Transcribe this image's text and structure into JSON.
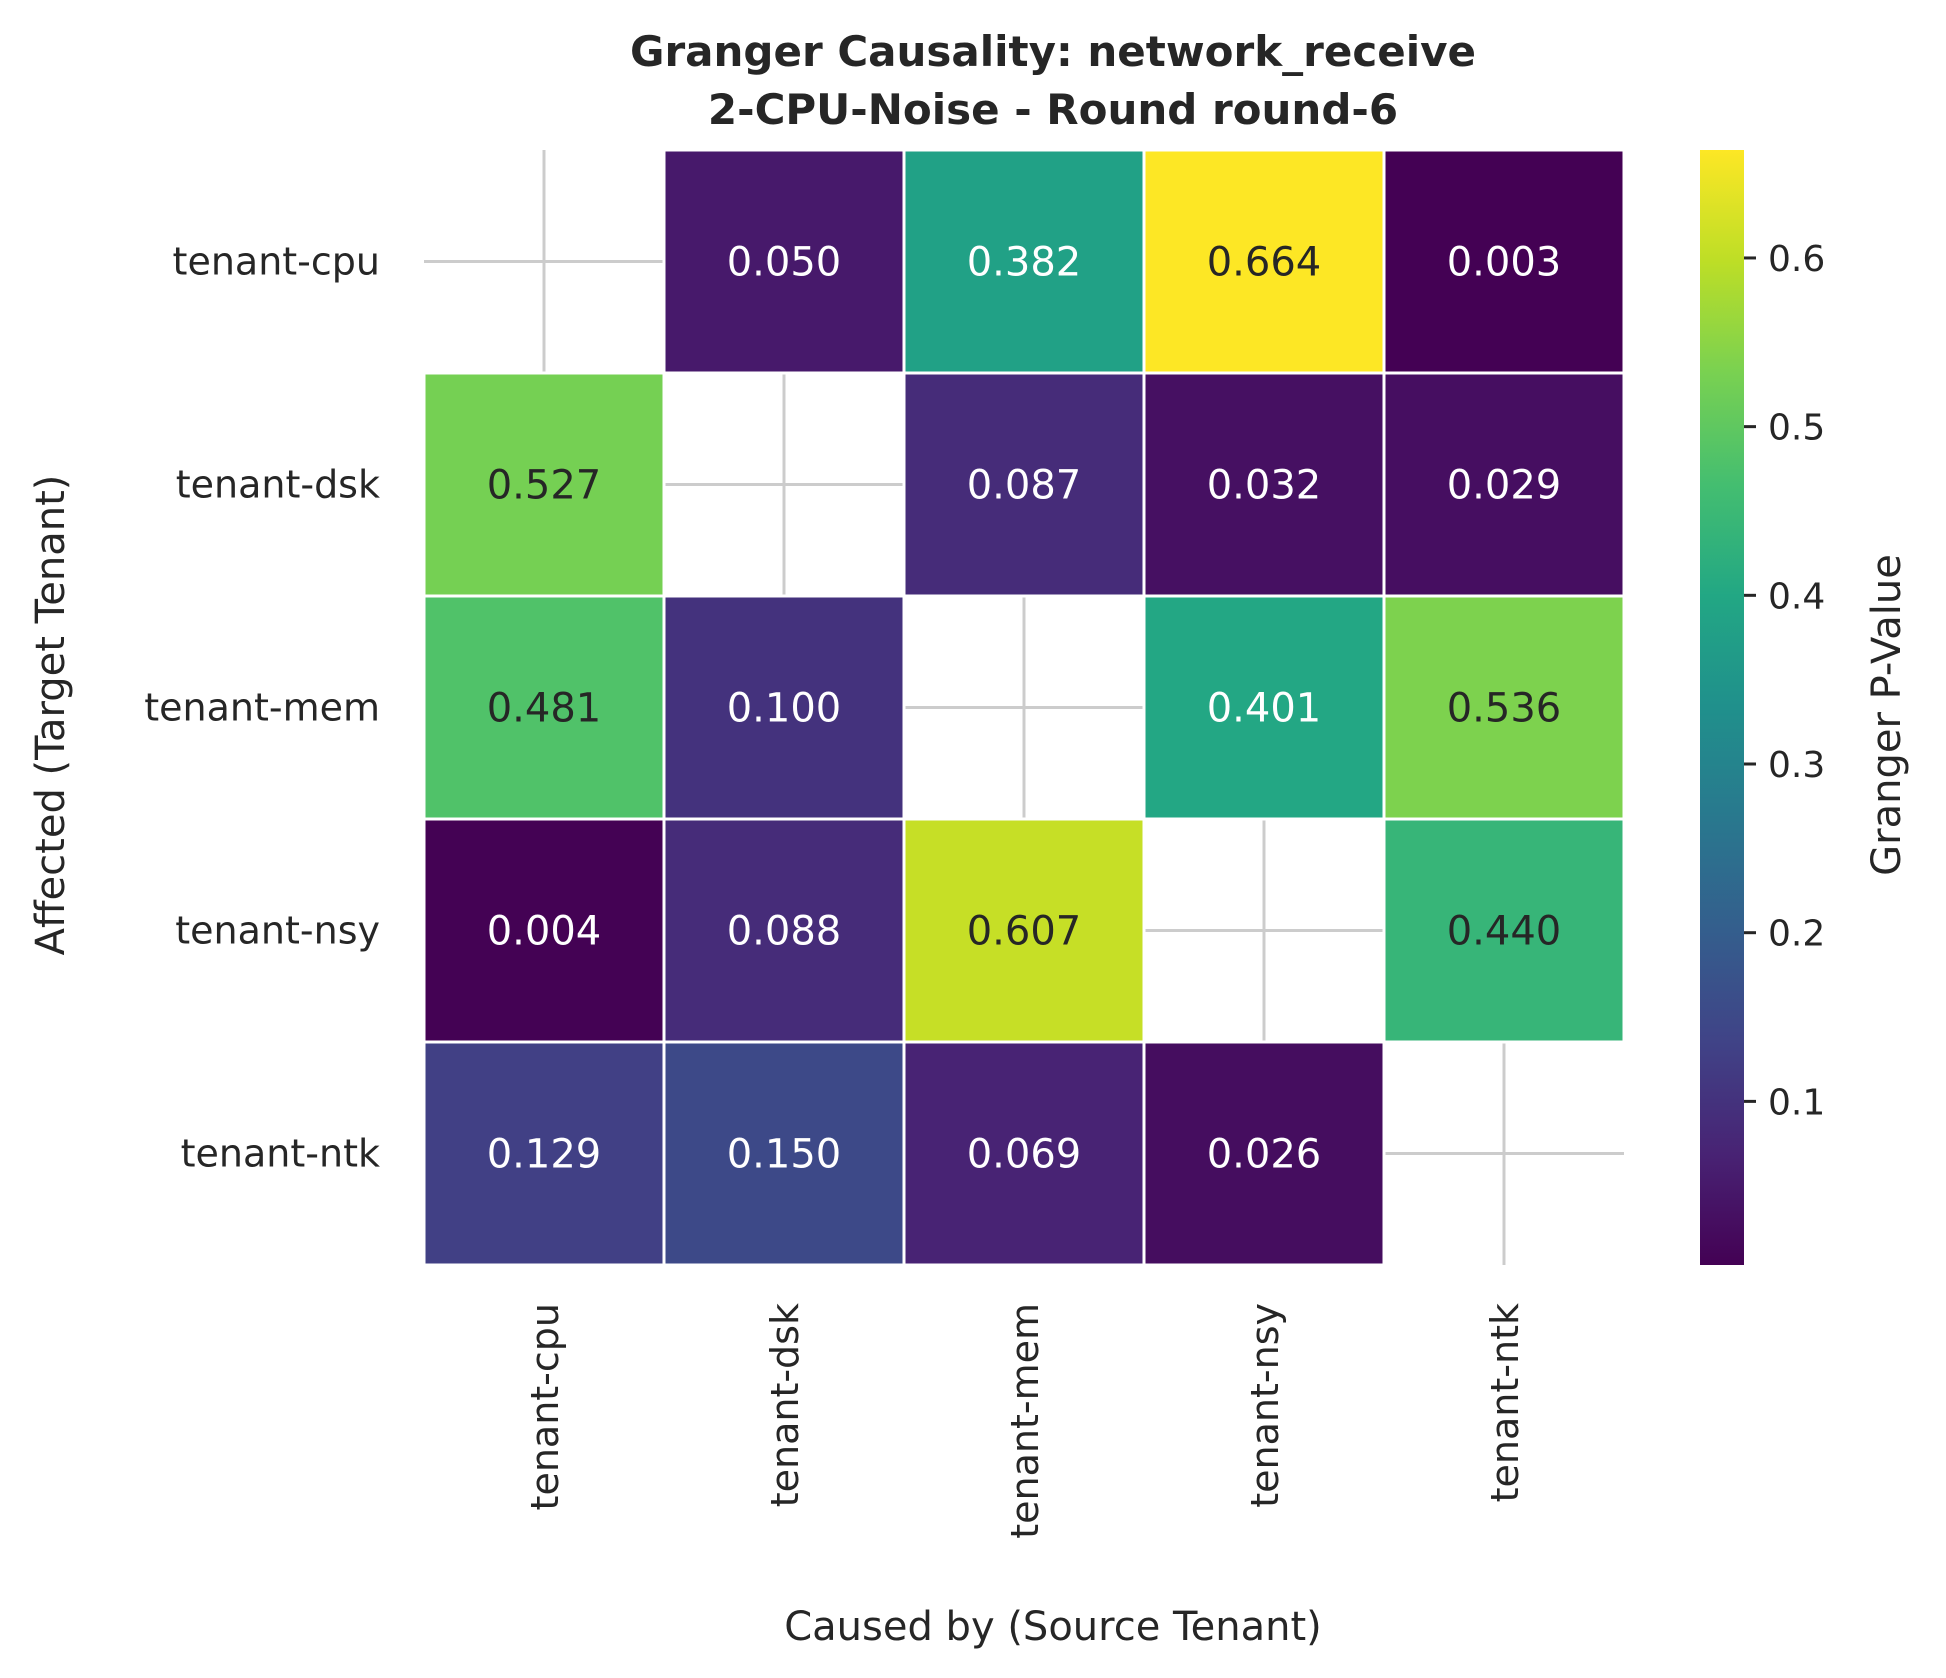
{
  "chart_data": {
    "type": "heatmap",
    "title": [
      "Granger Causality: network_receive",
      "2-CPU-Noise - Round round-6"
    ],
    "xlabel": "Caused by (Source Tenant)",
    "ylabel": "Affected (Target Tenant)",
    "x_categories": [
      "tenant-cpu",
      "tenant-dsk",
      "tenant-mem",
      "tenant-nsy",
      "tenant-ntk"
    ],
    "y_categories": [
      "tenant-cpu",
      "tenant-dsk",
      "tenant-mem",
      "tenant-nsy",
      "tenant-ntk"
    ],
    "values": [
      [
        null,
        0.05,
        0.382,
        0.664,
        0.003
      ],
      [
        0.527,
        null,
        0.087,
        0.032,
        0.029
      ],
      [
        0.481,
        0.1,
        null,
        0.401,
        0.536
      ],
      [
        0.004,
        0.088,
        0.607,
        null,
        0.44
      ],
      [
        0.129,
        0.15,
        0.069,
        0.026,
        null
      ]
    ],
    "colormap": "viridis",
    "colorbar": {
      "label": "Granger P-Value",
      "range": [
        0.003,
        0.664
      ],
      "ticks": [
        0.1,
        0.2,
        0.3,
        0.4,
        0.5,
        0.6
      ],
      "tick_labels": [
        "0.1",
        "0.2",
        "0.3",
        "0.4",
        "0.5",
        "0.6"
      ]
    },
    "grid": true,
    "annotation_format": "0.000"
  }
}
